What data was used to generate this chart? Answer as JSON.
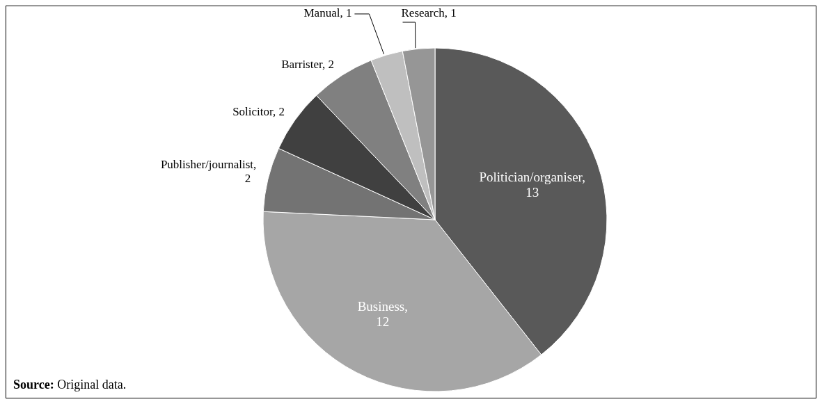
{
  "chart_data": {
    "type": "pie",
    "categories": [
      "Politician/organiser",
      "Business",
      "Publisher/journalist",
      "Solicitor",
      "Barrister",
      "Manual",
      "Research"
    ],
    "values": [
      13,
      12,
      2,
      2,
      2,
      1,
      1
    ],
    "colors": [
      "#595959",
      "#a6a6a6",
      "#737373",
      "#404040",
      "#808080",
      "#bfbfbf",
      "#969696"
    ],
    "value_labels": [
      ", 13",
      ", 12",
      ", 2",
      ", 2",
      ", 2",
      ", 1",
      ", 1"
    ],
    "legend": false,
    "annotations": [
      "Source: Original data."
    ]
  }
}
